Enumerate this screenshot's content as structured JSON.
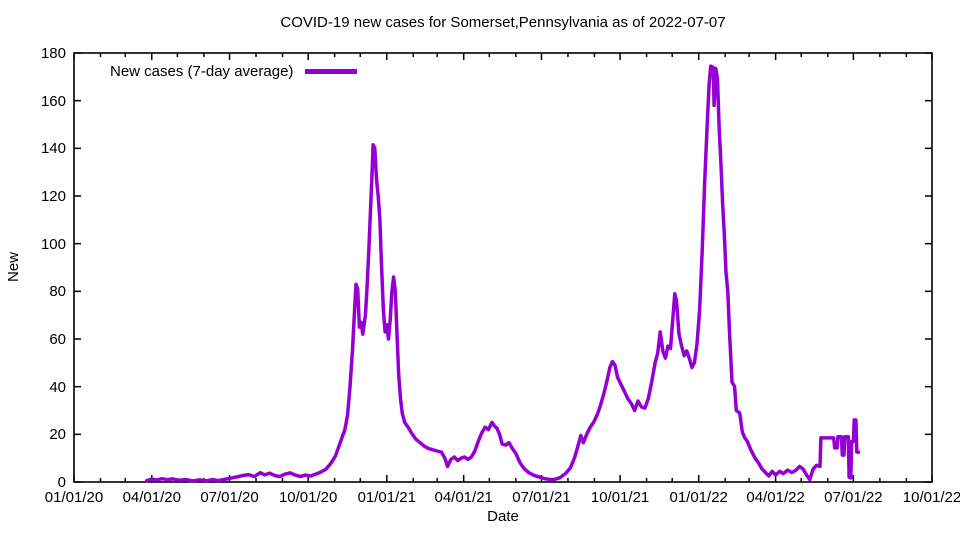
{
  "colors": {
    "line": "#9400d3",
    "axis": "#000000",
    "background": "#ffffff",
    "text": "#000000"
  },
  "chart_data": {
    "type": "line",
    "title": "COVID-19 new cases for Somerset,Pennsylvania as of 2022-07-07",
    "xlabel": "Date",
    "ylabel": "New",
    "ylim": [
      0,
      180
    ],
    "yticks": [
      0,
      20,
      40,
      60,
      80,
      100,
      120,
      140,
      160,
      180
    ],
    "xlim": [
      "2020-01-01",
      "2022-10-01"
    ],
    "xticks": [
      {
        "date": "2020-01-01",
        "label": "01/01/20"
      },
      {
        "date": "2020-04-01",
        "label": "04/01/20"
      },
      {
        "date": "2020-07-01",
        "label": "07/01/20"
      },
      {
        "date": "2020-10-01",
        "label": "10/01/20"
      },
      {
        "date": "2021-01-01",
        "label": "01/01/21"
      },
      {
        "date": "2021-04-01",
        "label": "04/01/21"
      },
      {
        "date": "2021-07-01",
        "label": "07/01/21"
      },
      {
        "date": "2021-10-01",
        "label": "10/01/21"
      },
      {
        "date": "2022-01-01",
        "label": "01/01/22"
      },
      {
        "date": "2022-04-01",
        "label": "04/01/22"
      },
      {
        "date": "2022-07-01",
        "label": "07/01/22"
      },
      {
        "date": "2022-10-01",
        "label": "10/01/22"
      }
    ],
    "minor_xticks": "monthly",
    "grid": false,
    "legend_position": "top-left-inside",
    "series": [
      {
        "name": "New cases (7-day average)",
        "color": "#9400d3",
        "points": [
          [
            "2020-03-26",
            0.5
          ],
          [
            "2020-04-01",
            1.2
          ],
          [
            "2020-04-07",
            0.8
          ],
          [
            "2020-04-13",
            1.4
          ],
          [
            "2020-04-19",
            1.0
          ],
          [
            "2020-04-26",
            1.3
          ],
          [
            "2020-05-03",
            0.7
          ],
          [
            "2020-05-11",
            1.0
          ],
          [
            "2020-05-19",
            0.4
          ],
          [
            "2020-05-27",
            0.9
          ],
          [
            "2020-06-04",
            0.5
          ],
          [
            "2020-06-11",
            1.0
          ],
          [
            "2020-06-18",
            0.6
          ],
          [
            "2020-06-25",
            1.1
          ],
          [
            "2020-07-02",
            1.6
          ],
          [
            "2020-07-09",
            2.1
          ],
          [
            "2020-07-16",
            2.7
          ],
          [
            "2020-07-23",
            3.1
          ],
          [
            "2020-07-30",
            2.3
          ],
          [
            "2020-08-06",
            3.9
          ],
          [
            "2020-08-11",
            3.0
          ],
          [
            "2020-08-17",
            3.7
          ],
          [
            "2020-08-23",
            2.7
          ],
          [
            "2020-08-29",
            2.3
          ],
          [
            "2020-09-04",
            3.3
          ],
          [
            "2020-09-10",
            3.8
          ],
          [
            "2020-09-16",
            2.9
          ],
          [
            "2020-09-22",
            2.3
          ],
          [
            "2020-09-28",
            2.9
          ],
          [
            "2020-10-04",
            2.5
          ],
          [
            "2020-10-10",
            3.3
          ],
          [
            "2020-10-16",
            4.2
          ],
          [
            "2020-10-22",
            5.4
          ],
          [
            "2020-10-28",
            8.0
          ],
          [
            "2020-11-02",
            11
          ],
          [
            "2020-11-06",
            15
          ],
          [
            "2020-11-10",
            19
          ],
          [
            "2020-11-13",
            22
          ],
          [
            "2020-11-16",
            28
          ],
          [
            "2020-11-19",
            40
          ],
          [
            "2020-11-22",
            56
          ],
          [
            "2020-11-24",
            70
          ],
          [
            "2020-11-26",
            83
          ],
          [
            "2020-11-28",
            81
          ],
          [
            "2020-11-30",
            65
          ],
          [
            "2020-12-02",
            67
          ],
          [
            "2020-12-04",
            62
          ],
          [
            "2020-12-07",
            70
          ],
          [
            "2020-12-09",
            82
          ],
          [
            "2020-12-11",
            97
          ],
          [
            "2020-12-13",
            114
          ],
          [
            "2020-12-15",
            131
          ],
          [
            "2020-12-16",
            141.5
          ],
          [
            "2020-12-18",
            140
          ],
          [
            "2020-12-20",
            127
          ],
          [
            "2020-12-22",
            120
          ],
          [
            "2020-12-24",
            110
          ],
          [
            "2020-12-26",
            90
          ],
          [
            "2020-12-28",
            72
          ],
          [
            "2020-12-30",
            63
          ],
          [
            "2021-01-01",
            66
          ],
          [
            "2021-01-03",
            60
          ],
          [
            "2021-01-05",
            68
          ],
          [
            "2021-01-07",
            80
          ],
          [
            "2021-01-09",
            86
          ],
          [
            "2021-01-11",
            80
          ],
          [
            "2021-01-13",
            62
          ],
          [
            "2021-01-15",
            45
          ],
          [
            "2021-01-17",
            35
          ],
          [
            "2021-01-19",
            29
          ],
          [
            "2021-01-22",
            25
          ],
          [
            "2021-01-26",
            23
          ],
          [
            "2021-01-30",
            20.5
          ],
          [
            "2021-02-04",
            18
          ],
          [
            "2021-02-09",
            16.5
          ],
          [
            "2021-02-14",
            15
          ],
          [
            "2021-02-19",
            14
          ],
          [
            "2021-02-24",
            13.5
          ],
          [
            "2021-03-01",
            13
          ],
          [
            "2021-03-06",
            12.5
          ],
          [
            "2021-03-10",
            10
          ],
          [
            "2021-03-13",
            6.5
          ],
          [
            "2021-03-17",
            9.5
          ],
          [
            "2021-03-21",
            10.5
          ],
          [
            "2021-03-25",
            9
          ],
          [
            "2021-03-29",
            10
          ],
          [
            "2021-04-02",
            10.5
          ],
          [
            "2021-04-06",
            9.5
          ],
          [
            "2021-04-10",
            10.5
          ],
          [
            "2021-04-14",
            13
          ],
          [
            "2021-04-18",
            17
          ],
          [
            "2021-04-22",
            20.5
          ],
          [
            "2021-04-26",
            23
          ],
          [
            "2021-04-30",
            22
          ],
          [
            "2021-05-04",
            25
          ],
          [
            "2021-05-07",
            23.5
          ],
          [
            "2021-05-10",
            22.5
          ],
          [
            "2021-05-13",
            20
          ],
          [
            "2021-05-16",
            16
          ],
          [
            "2021-05-20",
            15.5
          ],
          [
            "2021-05-24",
            16.5
          ],
          [
            "2021-05-28",
            14
          ],
          [
            "2021-06-01",
            12
          ],
          [
            "2021-06-06",
            8
          ],
          [
            "2021-06-11",
            5.5
          ],
          [
            "2021-06-16",
            4
          ],
          [
            "2021-06-22",
            2.8
          ],
          [
            "2021-06-29",
            2
          ],
          [
            "2021-07-06",
            1.3
          ],
          [
            "2021-07-14",
            0.9
          ],
          [
            "2021-07-22",
            1.7
          ],
          [
            "2021-07-29",
            3.5
          ],
          [
            "2021-08-04",
            6
          ],
          [
            "2021-08-09",
            10.5
          ],
          [
            "2021-08-13",
            15.5
          ],
          [
            "2021-08-16",
            19.5
          ],
          [
            "2021-08-19",
            16.5
          ],
          [
            "2021-08-23",
            20
          ],
          [
            "2021-08-27",
            23
          ],
          [
            "2021-08-31",
            25
          ],
          [
            "2021-09-04",
            28
          ],
          [
            "2021-09-08",
            32
          ],
          [
            "2021-09-12",
            37
          ],
          [
            "2021-09-16",
            43
          ],
          [
            "2021-09-19",
            48
          ],
          [
            "2021-09-22",
            50.5
          ],
          [
            "2021-09-25",
            49
          ],
          [
            "2021-09-28",
            44
          ],
          [
            "2021-10-02",
            41
          ],
          [
            "2021-10-06",
            38
          ],
          [
            "2021-10-10",
            35
          ],
          [
            "2021-10-14",
            33
          ],
          [
            "2021-10-18",
            30
          ],
          [
            "2021-10-22",
            34
          ],
          [
            "2021-10-26",
            31.5
          ],
          [
            "2021-10-30",
            31
          ],
          [
            "2021-11-03",
            35
          ],
          [
            "2021-11-07",
            42
          ],
          [
            "2021-11-11",
            50
          ],
          [
            "2021-11-14",
            54
          ],
          [
            "2021-11-17",
            63
          ],
          [
            "2021-11-20",
            55
          ],
          [
            "2021-11-23",
            52
          ],
          [
            "2021-11-26",
            57
          ],
          [
            "2021-11-29",
            56
          ],
          [
            "2021-12-02",
            70
          ],
          [
            "2021-12-04",
            79
          ],
          [
            "2021-12-06",
            76
          ],
          [
            "2021-12-09",
            62
          ],
          [
            "2021-12-12",
            57
          ],
          [
            "2021-12-15",
            53
          ],
          [
            "2021-12-18",
            55
          ],
          [
            "2021-12-21",
            52
          ],
          [
            "2021-12-24",
            48
          ],
          [
            "2021-12-27",
            50
          ],
          [
            "2021-12-30",
            58
          ],
          [
            "2022-01-02",
            72
          ],
          [
            "2022-01-05",
            96
          ],
          [
            "2022-01-08",
            126
          ],
          [
            "2022-01-11",
            150
          ],
          [
            "2022-01-13",
            166
          ],
          [
            "2022-01-15",
            174.5
          ],
          [
            "2022-01-18",
            174
          ],
          [
            "2022-01-19",
            158
          ],
          [
            "2022-01-21",
            173.5
          ],
          [
            "2022-01-23",
            169
          ],
          [
            "2022-01-25",
            148
          ],
          [
            "2022-01-27",
            134
          ],
          [
            "2022-01-29",
            117
          ],
          [
            "2022-01-31",
            104
          ],
          [
            "2022-02-02",
            88
          ],
          [
            "2022-02-04",
            80
          ],
          [
            "2022-02-06",
            63
          ],
          [
            "2022-02-09",
            42
          ],
          [
            "2022-02-12",
            40
          ],
          [
            "2022-02-14",
            30
          ],
          [
            "2022-02-18",
            29
          ],
          [
            "2022-02-21",
            21
          ],
          [
            "2022-02-24",
            18.5
          ],
          [
            "2022-02-27",
            17
          ],
          [
            "2022-03-03",
            13.5
          ],
          [
            "2022-03-08",
            10
          ],
          [
            "2022-03-12",
            8
          ],
          [
            "2022-03-16",
            5.5
          ],
          [
            "2022-03-20",
            4
          ],
          [
            "2022-03-24",
            2.5
          ],
          [
            "2022-03-28",
            4.5
          ],
          [
            "2022-04-01",
            3
          ],
          [
            "2022-04-06",
            4.5
          ],
          [
            "2022-04-10",
            3.5
          ],
          [
            "2022-04-15",
            5
          ],
          [
            "2022-04-20",
            4
          ],
          [
            "2022-04-25",
            5
          ],
          [
            "2022-04-29",
            6.5
          ],
          [
            "2022-05-03",
            5.5
          ],
          [
            "2022-05-08",
            2.5
          ],
          [
            "2022-05-11",
            1
          ],
          [
            "2022-05-15",
            5.5
          ],
          [
            "2022-05-19",
            7
          ],
          [
            "2022-05-23",
            6.5
          ],
          [
            "2022-05-24",
            18.5
          ],
          [
            "2022-06-08",
            18.5
          ],
          [
            "2022-06-09",
            14.3
          ],
          [
            "2022-06-12",
            14.3
          ],
          [
            "2022-06-13",
            19
          ],
          [
            "2022-06-17",
            19
          ],
          [
            "2022-06-18",
            11.3
          ],
          [
            "2022-06-20",
            11.3
          ],
          [
            "2022-06-21",
            19
          ],
          [
            "2022-06-25",
            19
          ],
          [
            "2022-06-26",
            2
          ],
          [
            "2022-06-28",
            1.7
          ],
          [
            "2022-06-29",
            17
          ],
          [
            "2022-07-01",
            17
          ],
          [
            "2022-07-02",
            26
          ],
          [
            "2022-07-04",
            26
          ],
          [
            "2022-07-05",
            12.6
          ],
          [
            "2022-07-07",
            12.5
          ]
        ]
      }
    ]
  }
}
